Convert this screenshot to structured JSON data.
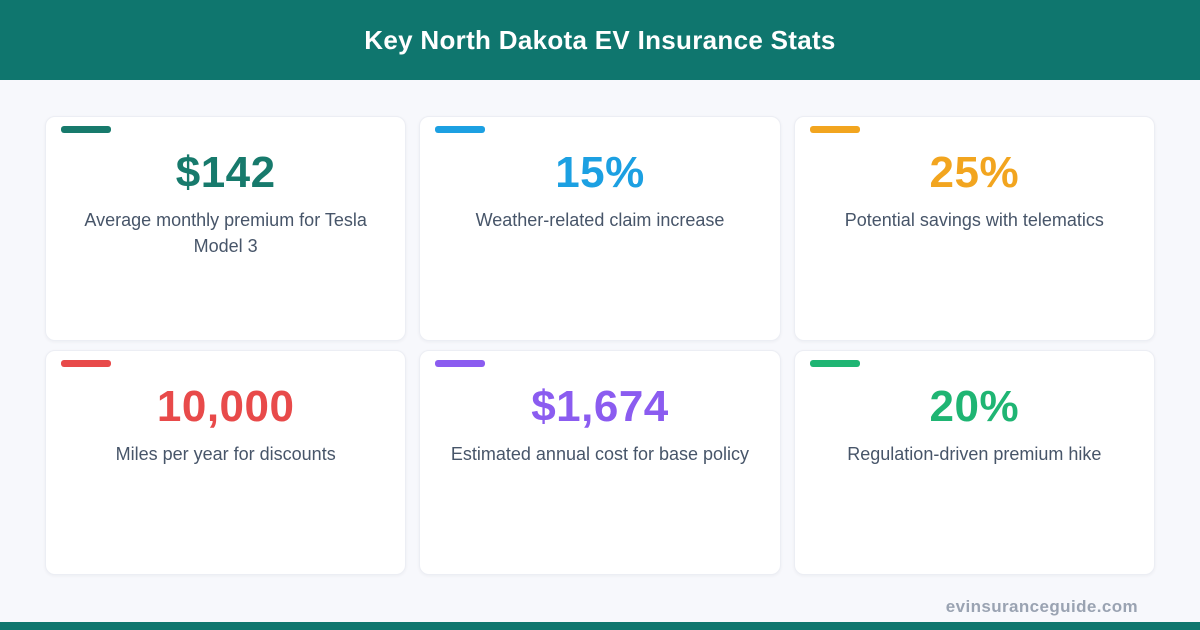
{
  "header": {
    "title": "Key North Dakota EV Insurance Stats"
  },
  "colors": {
    "brand_teal": "#0f766e",
    "page_bg": "#f7f8fc",
    "label_text": "#475569",
    "footer_text": "#9aa3b2"
  },
  "cards": [
    {
      "value": "$142",
      "label": "Average monthly premium for Tesla Model 3",
      "color": "#177a6c"
    },
    {
      "value": "15%",
      "label": "Weather-related claim increase",
      "color": "#1ca0e2"
    },
    {
      "value": "25%",
      "label": "Potential savings with telematics",
      "color": "#f2a51f"
    },
    {
      "value": "10,000",
      "label": "Miles per year for discounts",
      "color": "#e84a4a"
    },
    {
      "value": "$1,674",
      "label": "Estimated annual cost for base policy",
      "color": "#8b5cf0"
    },
    {
      "value": "20%",
      "label": "Regulation-driven premium hike",
      "color": "#1fb573"
    }
  ],
  "footer": {
    "site": "evinsuranceguide.com"
  }
}
